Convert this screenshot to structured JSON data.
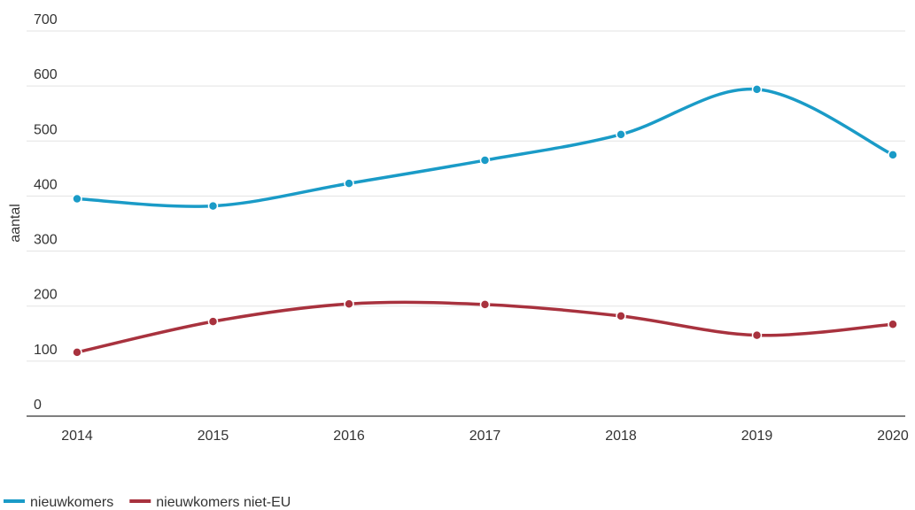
{
  "chart_data": {
    "type": "line",
    "y_label": "aantal",
    "categories": [
      "2014",
      "2015",
      "2016",
      "2017",
      "2018",
      "2019",
      "2020"
    ],
    "series": [
      {
        "name": "nieuwkomers",
        "color": "#1a9bc7",
        "values": [
          395,
          382,
          423,
          465,
          512,
          594,
          475
        ]
      },
      {
        "name": "nieuwkomers niet-EU",
        "color": "#a8323e",
        "values": [
          116,
          172,
          204,
          203,
          182,
          147,
          167
        ]
      }
    ],
    "ylim": [
      0,
      700
    ],
    "yticks": [
      0,
      100,
      200,
      300,
      400,
      500,
      600,
      700
    ],
    "grid": true,
    "legend": "bottom-left"
  }
}
